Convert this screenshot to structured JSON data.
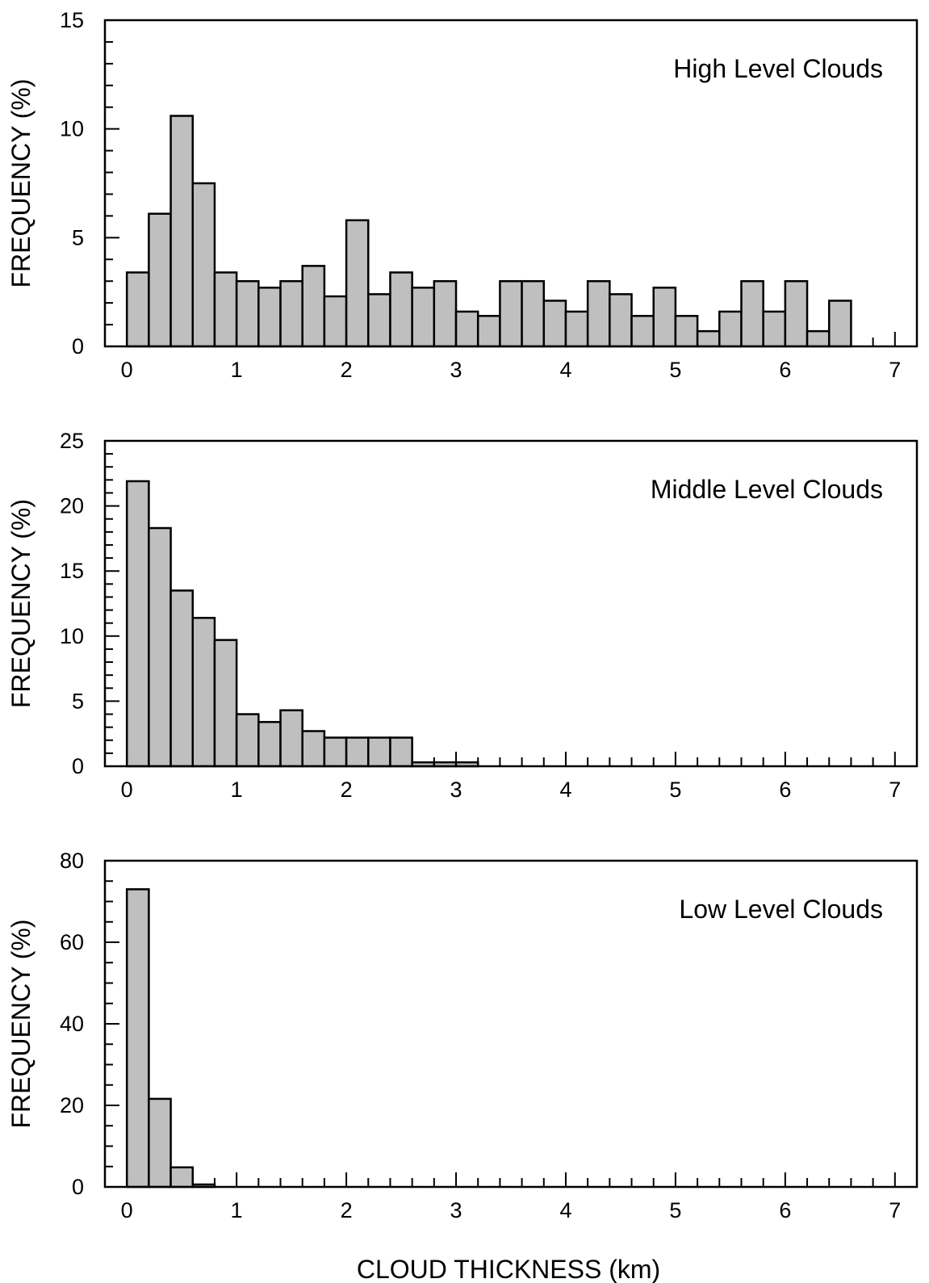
{
  "colors": {
    "bar_fill": "#bfbfbf",
    "bar_stroke": "#000000",
    "axis": "#000000",
    "background": "#ffffff"
  },
  "chart_data": [
    {
      "type": "bar",
      "title": "High Level Clouds",
      "xlabel": "",
      "ylabel": "FREQUENCY (%)",
      "bin_width": 0.2,
      "x": [
        0.0,
        0.2,
        0.4,
        0.6,
        0.8,
        1.0,
        1.2,
        1.4,
        1.6,
        1.8,
        2.0,
        2.2,
        2.4,
        2.6,
        2.8,
        3.0,
        3.2,
        3.4,
        3.6,
        3.8,
        4.0,
        4.2,
        4.4,
        4.6,
        4.8,
        5.0,
        5.2,
        5.4,
        5.6,
        5.8,
        6.0,
        6.2,
        6.4,
        6.6,
        6.8,
        7.0
      ],
      "values": [
        3.4,
        6.1,
        10.6,
        7.5,
        3.4,
        3.0,
        2.7,
        3.0,
        3.7,
        2.3,
        5.8,
        2.4,
        3.4,
        2.7,
        3.0,
        1.6,
        1.4,
        3.0,
        3.0,
        2.1,
        1.6,
        3.0,
        2.4,
        1.4,
        2.7,
        1.4,
        0.7,
        1.6,
        3.0,
        1.6,
        3.0,
        0.7,
        2.1,
        0,
        0,
        0
      ],
      "xlim": [
        -0.2,
        7.2
      ],
      "ylim": [
        0,
        15
      ],
      "xticks": [
        0,
        1,
        2,
        3,
        4,
        5,
        6,
        7
      ],
      "yticks": [
        0,
        5,
        10,
        15
      ],
      "y_minor_step": 1,
      "tick_labels_x": [
        "0",
        "1",
        "2",
        "3",
        "4",
        "5",
        "6",
        "7"
      ],
      "tick_labels_y": [
        "0",
        "5",
        "10",
        "15"
      ],
      "legend": "none",
      "grid": false
    },
    {
      "type": "bar",
      "title": "Middle Level Clouds",
      "xlabel": "",
      "ylabel": "FREQUENCY (%)",
      "bin_width": 0.2,
      "x": [
        0.0,
        0.2,
        0.4,
        0.6,
        0.8,
        1.0,
        1.2,
        1.4,
        1.6,
        1.8,
        2.0,
        2.2,
        2.4,
        2.6,
        2.8,
        3.0,
        3.2,
        3.4,
        3.6,
        3.8,
        4.0,
        4.2,
        4.4,
        4.6,
        4.8,
        5.0,
        5.2,
        5.4,
        5.6,
        5.8,
        6.0,
        6.2,
        6.4,
        6.6,
        6.8,
        7.0
      ],
      "values": [
        21.9,
        18.3,
        13.5,
        11.4,
        9.7,
        4.0,
        3.4,
        4.3,
        2.7,
        2.2,
        2.2,
        2.2,
        2.2,
        0.3,
        0.3,
        0.3,
        0,
        0,
        0,
        0,
        0,
        0,
        0,
        0,
        0,
        0,
        0,
        0,
        0,
        0,
        0,
        0,
        0,
        0,
        0,
        0
      ],
      "xlim": [
        -0.2,
        7.2
      ],
      "ylim": [
        0,
        25
      ],
      "xticks": [
        0,
        1,
        2,
        3,
        4,
        5,
        6,
        7
      ],
      "yticks": [
        0,
        5,
        10,
        15,
        20,
        25
      ],
      "y_minor_step": 1,
      "tick_labels_x": [
        "0",
        "1",
        "2",
        "3",
        "4",
        "5",
        "6",
        "7"
      ],
      "tick_labels_y": [
        "0",
        "5",
        "10",
        "15",
        "20",
        "25"
      ],
      "legend": "none",
      "grid": false
    },
    {
      "type": "bar",
      "title": "Low Level Clouds",
      "xlabel": "CLOUD THICKNESS (km)",
      "ylabel": "FREQUENCY (%)",
      "bin_width": 0.2,
      "x": [
        0.0,
        0.2,
        0.4,
        0.6,
        0.8,
        1.0,
        1.2,
        1.4,
        1.6,
        1.8,
        2.0,
        2.2,
        2.4,
        2.6,
        2.8,
        3.0,
        3.2,
        3.4,
        3.6,
        3.8,
        4.0,
        4.2,
        4.4,
        4.6,
        4.8,
        5.0,
        5.2,
        5.4,
        5.6,
        5.8,
        6.0,
        6.2,
        6.4,
        6.6,
        6.8,
        7.0
      ],
      "values": [
        73.0,
        21.6,
        4.8,
        0.6,
        0,
        0,
        0,
        0,
        0,
        0,
        0,
        0,
        0,
        0,
        0,
        0,
        0,
        0,
        0,
        0,
        0,
        0,
        0,
        0,
        0,
        0,
        0,
        0,
        0,
        0,
        0,
        0,
        0,
        0,
        0,
        0
      ],
      "xlim": [
        -0.2,
        7.2
      ],
      "ylim": [
        0,
        80
      ],
      "xticks": [
        0,
        1,
        2,
        3,
        4,
        5,
        6,
        7
      ],
      "yticks": [
        0,
        20,
        40,
        60,
        80
      ],
      "y_minor_step": 5,
      "tick_labels_x": [
        "0",
        "1",
        "2",
        "3",
        "4",
        "5",
        "6",
        "7"
      ],
      "tick_labels_y": [
        "0",
        "20",
        "40",
        "60",
        "80"
      ],
      "legend": "none",
      "grid": false
    }
  ]
}
